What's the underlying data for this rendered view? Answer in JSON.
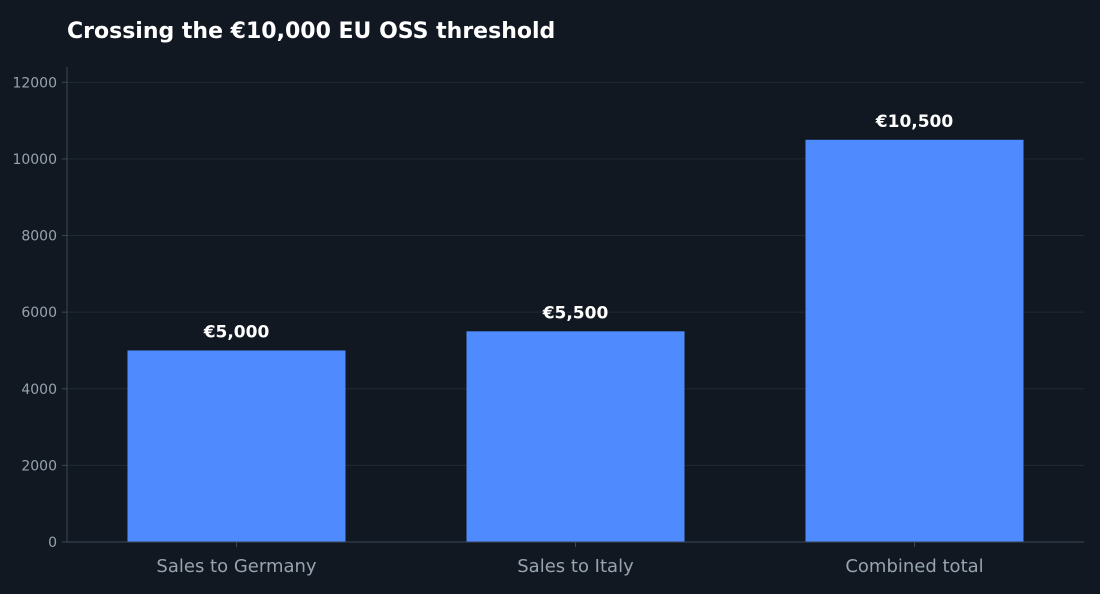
{
  "chart_data": {
    "type": "bar",
    "title": "Crossing the €10,000 EU OSS threshold",
    "categories": [
      "Sales to Germany",
      "Sales to Italy",
      "Combined total"
    ],
    "values": [
      5000,
      5500,
      10500
    ],
    "value_labels": [
      "€5,000",
      "€5,500",
      "€10,500"
    ],
    "yticks": [
      0,
      2000,
      4000,
      6000,
      8000,
      10000,
      12000
    ],
    "ylim": [
      0,
      12400
    ],
    "xlabel": "",
    "ylabel": "",
    "grid": true,
    "legend": "none",
    "colors": {
      "bar": "#4f8bff",
      "background": "#111821",
      "grid": "#1f2a35",
      "axis": "#3a4756",
      "tick_text": "#97a3b0",
      "label_text": "#ffffff"
    }
  }
}
